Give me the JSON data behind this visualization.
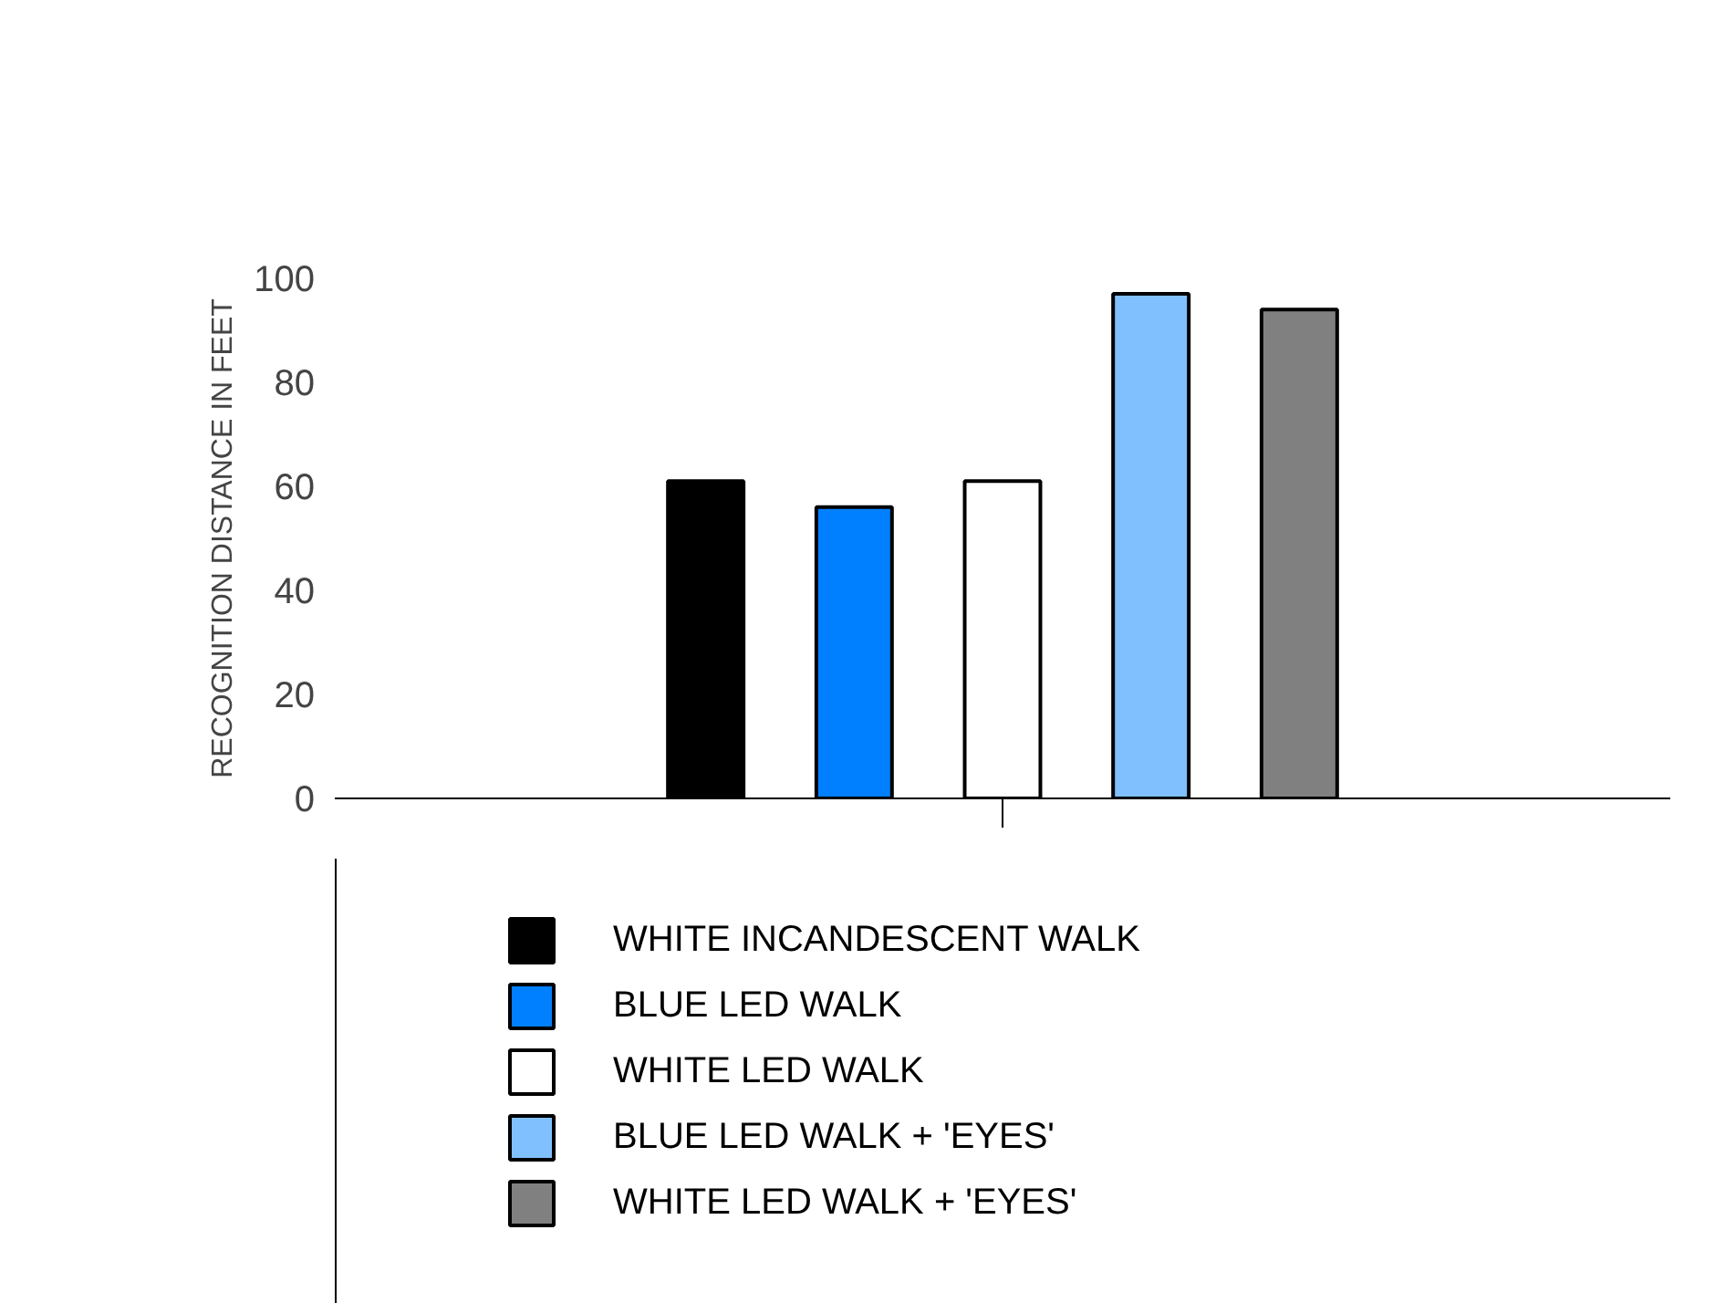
{
  "chart_data": {
    "type": "bar",
    "ylabel": "RECOGNITION DISTANCE IN FEET",
    "categories": [
      null
    ],
    "series": [
      {
        "name": "WHITE INCANDESCENT WALK",
        "color": "#000000",
        "values": [
          61
        ]
      },
      {
        "name": "BLUE LED WALK",
        "color": "#0080ff",
        "values": [
          56
        ]
      },
      {
        "name": "WHITE LED WALK",
        "color": "#ffffff",
        "values": [
          61
        ]
      },
      {
        "name": "BLUE LED WALK + 'EYES'",
        "color": "#80c0ff",
        "values": [
          97
        ]
      },
      {
        "name": "WHITE LED WALK + 'EYES'",
        "color": "#808080",
        "values": [
          94
        ]
      }
    ],
    "ylim": [
      0,
      100
    ],
    "yticks": [
      0,
      20,
      40,
      60,
      80,
      100
    ],
    "grid": false,
    "legend": "bottom"
  }
}
